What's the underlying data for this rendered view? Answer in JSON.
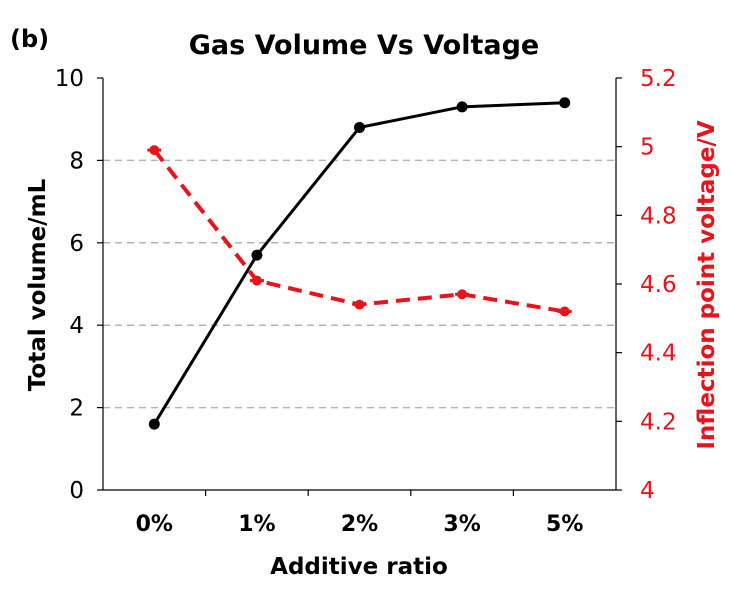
{
  "panel_label": "(b)",
  "chart_data": {
    "type": "line",
    "title": "Gas Volume Vs Voltage",
    "xlabel": "Additive ratio",
    "ylabel": "Total volume/mL",
    "y2label": "Inflection point voltage/V",
    "categories": [
      "0%",
      "1%",
      "2%",
      "3%",
      "5%"
    ],
    "ylim": [
      0,
      10
    ],
    "yticks": [
      "0",
      "2",
      "4",
      "6",
      "8",
      "10"
    ],
    "y2lim": [
      4,
      5.2
    ],
    "y2ticks": [
      "4",
      "4.2",
      "4.4",
      "4.6",
      "4.8",
      "5",
      "5.2"
    ],
    "grid": "horizontal dashed",
    "series": [
      {
        "name": "Total volume",
        "axis": "left",
        "color": "#000000",
        "style": "solid",
        "values": [
          1.6,
          5.7,
          8.8,
          9.3,
          9.4
        ]
      },
      {
        "name": "Inflection point voltage",
        "axis": "right",
        "color": "#e8141b",
        "style": "dashed",
        "values": [
          4.99,
          4.61,
          4.54,
          4.57,
          4.52
        ]
      }
    ]
  }
}
